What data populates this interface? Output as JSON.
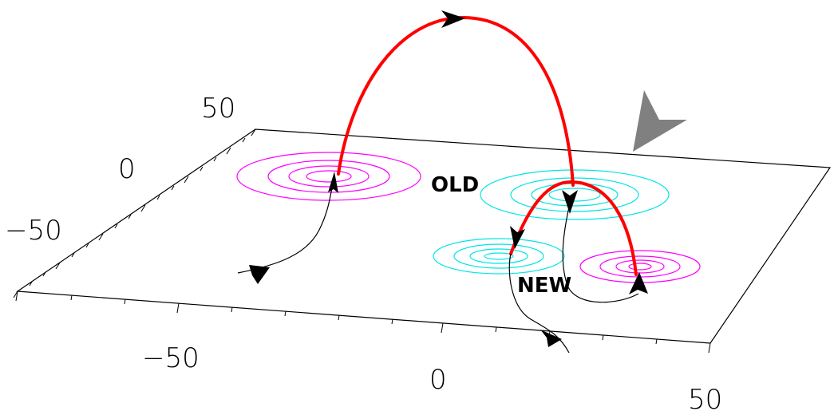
{
  "axes": {
    "y_ticks": [
      "50",
      "0",
      "−50"
    ],
    "x_ticks": [
      "−50",
      "0",
      "50"
    ]
  },
  "regions": {
    "old_label": "OLD",
    "new_label": "NEW"
  },
  "colors": {
    "magenta": "#ff00ff",
    "cyan": "#00e5e5",
    "fieldline": "#ff0000",
    "viewpoint_arrow": "#808080"
  },
  "icons": {
    "viewpoint": "arrowhead-icon"
  }
}
